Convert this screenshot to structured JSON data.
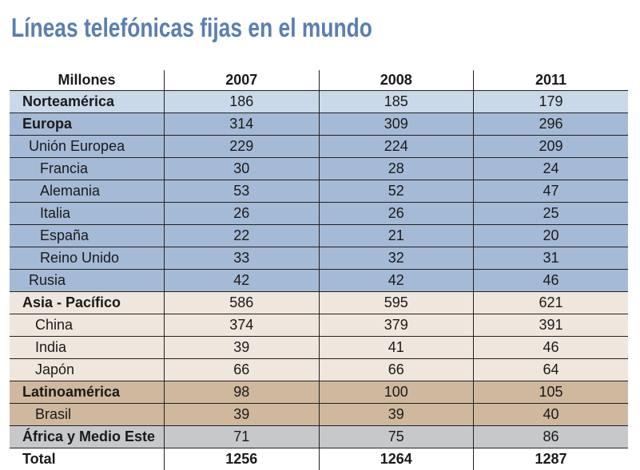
{
  "title": "Líneas telefónicas fijas en el mundo",
  "colors": {
    "title": "#5a7fb0",
    "norteamerica": "#c9d9ea",
    "europa": "#a5bad6",
    "asia_pacifico": "#efe6dd",
    "latinoamerica": "#cfb89e",
    "africa": "#c7c8ca"
  },
  "table": {
    "headers": [
      "Millones",
      "2007",
      "2008",
      "2011"
    ],
    "rows": [
      {
        "label": "Norteamérica",
        "values": [
          "186",
          "185",
          "179"
        ]
      },
      {
        "label": "Europa",
        "values": [
          "314",
          "309",
          "296"
        ]
      },
      {
        "label": "Unión Europea",
        "values": [
          "229",
          "224",
          "209"
        ]
      },
      {
        "label": "Francia",
        "values": [
          "30",
          "28",
          "24"
        ]
      },
      {
        "label": "Alemania",
        "values": [
          "53",
          "52",
          "47"
        ]
      },
      {
        "label": "Italia",
        "values": [
          "26",
          "26",
          "25"
        ]
      },
      {
        "label": "España",
        "values": [
          "22",
          "21",
          "20"
        ]
      },
      {
        "label": "Reino Unido",
        "values": [
          "33",
          "32",
          "31"
        ]
      },
      {
        "label": "Rusia",
        "values": [
          "42",
          "42",
          "46"
        ]
      },
      {
        "label": "Asia - Pacífico",
        "values": [
          "586",
          "595",
          "621"
        ]
      },
      {
        "label": "China",
        "values": [
          "374",
          "379",
          "391"
        ]
      },
      {
        "label": "India",
        "values": [
          "39",
          "41",
          "46"
        ]
      },
      {
        "label": "Japón",
        "values": [
          "66",
          "66",
          "64"
        ]
      },
      {
        "label": "Latinoamérica",
        "values": [
          "98",
          "100",
          "105"
        ]
      },
      {
        "label": "Brasil",
        "values": [
          "39",
          "39",
          "40"
        ]
      },
      {
        "label": "África y Medio Este",
        "values": [
          "71",
          "75",
          "86"
        ]
      },
      {
        "label": "Total",
        "values": [
          "1256",
          "1264",
          "1287"
        ]
      }
    ]
  }
}
